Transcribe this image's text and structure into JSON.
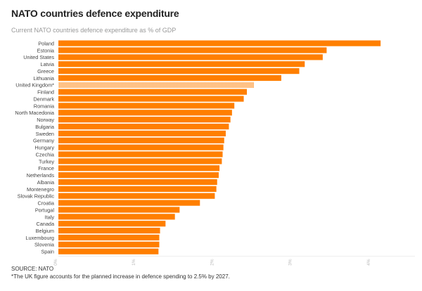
{
  "chart_data": {
    "type": "bar",
    "orientation": "horizontal",
    "title": "NATO countries defence expenditure",
    "subtitle": "Current NATO countries defence expenditure as % of GDP",
    "categories": [
      "Poland",
      "Estonia",
      "United States",
      "Latvia",
      "Greece",
      "Lithuania",
      "United Kingdom*",
      "Finland",
      "Denmark",
      "Romania",
      "North Macedonia",
      "Norway",
      "Bulgaria",
      "Sweden",
      "Germany",
      "Hungary",
      "Czechia",
      "Turkey",
      "France",
      "Netherlands",
      "Albania",
      "Montenegro",
      "Slovak Republic",
      "Croatia",
      "Portugal",
      "Italy",
      "Canada",
      "Belgium",
      "Luxembourg",
      "Slovenia",
      "Spain"
    ],
    "values": [
      4.12,
      3.43,
      3.38,
      3.15,
      3.08,
      2.85,
      2.5,
      2.41,
      2.37,
      2.25,
      2.22,
      2.2,
      2.18,
      2.14,
      2.12,
      2.11,
      2.1,
      2.09,
      2.06,
      2.05,
      2.03,
      2.02,
      2.0,
      1.81,
      1.55,
      1.49,
      1.37,
      1.3,
      1.29,
      1.29,
      1.28
    ],
    "highlight": {
      "category": "United Kingdom*",
      "style": "hatched"
    },
    "xlim": [
      0,
      4.5
    ],
    "xticks": [
      "0%",
      "1%",
      "2%",
      "3%",
      "4%"
    ],
    "xlabel": "",
    "ylabel": "",
    "grid": false,
    "colors": {
      "bar": "#ff7f00",
      "highlight": "#ffb066"
    }
  },
  "source": "SOURCE: NATO",
  "footnote": "*The UK figure accounts for the planned increase in defence spending to 2.5% by 2027."
}
